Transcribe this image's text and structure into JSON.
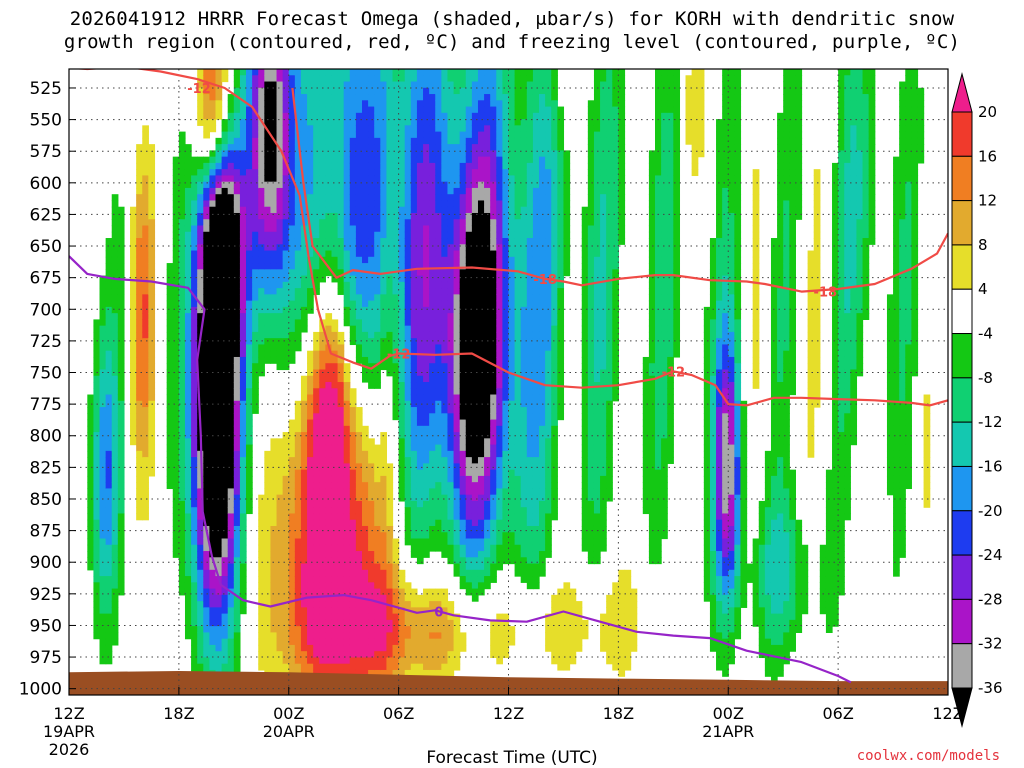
{
  "chart_data": {
    "type": "heatmap",
    "title_line1": "2026041912 HRRR Forecast Omega (shaded, μbar/s) for KORH with dendritic snow",
    "title_line2": "growth region (contoured, red, ºC) and freezing level (contoured, purple, ºC)",
    "xlabel": "Forecast Time (UTC)",
    "ylabel": "Pressure (hPa)",
    "credit": "coolwx.com/models",
    "x_range_hours": [
      0,
      48
    ],
    "y_range_hpa": [
      510,
      1005
    ],
    "y_ticks": [
      525,
      550,
      575,
      600,
      625,
      650,
      675,
      700,
      725,
      750,
      775,
      800,
      825,
      850,
      875,
      900,
      925,
      950,
      975,
      1000
    ],
    "x_ticks": [
      {
        "hour": 0,
        "label": "12Z",
        "sub": "19APR",
        "sub2": "2026"
      },
      {
        "hour": 6,
        "label": "18Z",
        "sub": "",
        "sub2": ""
      },
      {
        "hour": 12,
        "label": "00Z",
        "sub": "20APR",
        "sub2": ""
      },
      {
        "hour": 18,
        "label": "06Z",
        "sub": "",
        "sub2": ""
      },
      {
        "hour": 24,
        "label": "12Z",
        "sub": "",
        "sub2": ""
      },
      {
        "hour": 30,
        "label": "18Z",
        "sub": "",
        "sub2": ""
      },
      {
        "hour": 36,
        "label": "00Z",
        "sub": "21APR",
        "sub2": ""
      },
      {
        "hour": 42,
        "label": "06Z",
        "sub": "",
        "sub2": ""
      },
      {
        "hour": 48,
        "label": "12Z",
        "sub": "",
        "sub2": ""
      }
    ],
    "colorbar": {
      "labels": [
        "20",
        "16",
        "12",
        "8",
        "4",
        "-4",
        "-8",
        "-12",
        "-16",
        "-20",
        "-24",
        "-28",
        "-32",
        "-36"
      ],
      "bins": [
        {
          "lo": 20,
          "hi": 99,
          "color": "#ee1e8c"
        },
        {
          "lo": 16,
          "hi": 20,
          "color": "#f03a2c"
        },
        {
          "lo": 12,
          "hi": 16,
          "color": "#f07e22"
        },
        {
          "lo": 8,
          "hi": 12,
          "color": "#e2aa2e"
        },
        {
          "lo": 4,
          "hi": 8,
          "color": "#e6de2a"
        },
        {
          "lo": -4,
          "hi": 4,
          "color": "#ffffff"
        },
        {
          "lo": -8,
          "hi": -4,
          "color": "#14c814"
        },
        {
          "lo": -12,
          "hi": -8,
          "color": "#10d072"
        },
        {
          "lo": -16,
          "hi": -12,
          "color": "#14c8b0"
        },
        {
          "lo": -20,
          "hi": -16,
          "color": "#1e96f0"
        },
        {
          "lo": -24,
          "hi": -20,
          "color": "#1e3cf0"
        },
        {
          "lo": -28,
          "hi": -24,
          "color": "#7820dc"
        },
        {
          "lo": -32,
          "hi": -28,
          "color": "#aa14c8"
        },
        {
          "lo": -36,
          "hi": -32,
          "color": "#a8a8a8"
        },
        {
          "lo": -99,
          "hi": -36,
          "color": "#000000"
        }
      ]
    },
    "omega_features": [
      {
        "name": "descent-core-1",
        "hour": 8.0,
        "hpa": 785,
        "sh": 0.9,
        "sp": 115,
        "amp": -58
      },
      {
        "name": "descent-core-1-upper",
        "hour": 8.4,
        "hpa": 650,
        "sh": 0.8,
        "sp": 60,
        "amp": -32
      },
      {
        "name": "descent-core-upper-stripe",
        "hour": 11.0,
        "hpa": 560,
        "sh": 0.8,
        "sp": 90,
        "amp": -34
      },
      {
        "name": "descent-wide-upper",
        "hour": 15.0,
        "hpa": 600,
        "sh": 3.2,
        "sp": 160,
        "amp": -14
      },
      {
        "name": "descent-core-2",
        "hour": 22.2,
        "hpa": 730,
        "sh": 1.3,
        "sp": 90,
        "amp": -28
      },
      {
        "name": "descent-wide-mid",
        "hour": 22.0,
        "hpa": 700,
        "sh": 3.6,
        "sp": 200,
        "amp": -14
      },
      {
        "name": "descent-core-3",
        "hour": 36.0,
        "hpa": 830,
        "sh": 0.55,
        "sp": 75,
        "amp": -32
      },
      {
        "name": "descent-right-lobe",
        "hour": 39.0,
        "hpa": 910,
        "sh": 1.4,
        "sp": 45,
        "amp": -12
      },
      {
        "name": "descent-far-right",
        "hour": 43.5,
        "hpa": 620,
        "sh": 0.9,
        "sp": 110,
        "amp": -9
      },
      {
        "name": "descent-left-low",
        "hour": 2.0,
        "hpa": 830,
        "sh": 0.6,
        "sp": 80,
        "amp": -18
      },
      {
        "name": "ascent-core-1",
        "hour": 4.0,
        "hpa": 700,
        "sh": 0.5,
        "sp": 90,
        "amp": 16
      },
      {
        "name": "ascent-top-1",
        "hour": 7.8,
        "hpa": 540,
        "sh": 0.7,
        "sp": 50,
        "amp": 22
      },
      {
        "name": "ascent-plume",
        "hour": 14.5,
        "hpa": 870,
        "sh": 2.2,
        "sp": 95,
        "amp": 30
      },
      {
        "name": "ascent-plume-upper",
        "hour": 14.3,
        "hpa": 760,
        "sh": 1.0,
        "sp": 60,
        "amp": 14
      },
      {
        "name": "ascent-low-spread",
        "hour": 19.0,
        "hpa": 955,
        "sh": 4.0,
        "sp": 35,
        "amp": 16
      },
      {
        "name": "ascent-low-right",
        "hour": 28.5,
        "hpa": 950,
        "sh": 2.8,
        "sp": 30,
        "amp": 7
      },
      {
        "name": "ascent-top-right",
        "hour": 34.0,
        "hpa": 540,
        "sh": 0.5,
        "sp": 40,
        "amp": 7
      },
      {
        "name": "ascent-top-mid",
        "hour": 27.0,
        "hpa": 525,
        "sh": 0.5,
        "sp": 30,
        "amp": 6
      }
    ],
    "series": [
      {
        "name": "dendritic -12C upper",
        "label": "-12",
        "color": "#f04b46",
        "points": [
          [
            0,
            509
          ],
          [
            1,
            510
          ],
          [
            3,
            508
          ],
          [
            5,
            512
          ],
          [
            7,
            518
          ],
          [
            8.5,
            525
          ],
          [
            10,
            540
          ],
          [
            11.6,
            575
          ],
          [
            12.6,
            610
          ],
          [
            13.1,
            660
          ],
          [
            13.6,
            700
          ],
          [
            14.3,
            735
          ],
          [
            15.5,
            742
          ],
          [
            16.5,
            747
          ],
          [
            17.5,
            737
          ],
          [
            18,
            735
          ]
        ]
      },
      {
        "name": "dendritic -12C lower",
        "label": "-12",
        "color": "#f04b46",
        "points": [
          [
            18,
            735
          ],
          [
            20,
            736
          ],
          [
            22,
            735
          ],
          [
            24,
            750
          ],
          [
            26,
            760
          ],
          [
            28,
            762
          ],
          [
            30,
            760
          ],
          [
            32,
            755
          ],
          [
            33,
            749
          ],
          [
            34,
            752
          ],
          [
            35.3,
            760
          ],
          [
            36,
            775
          ],
          [
            37,
            776
          ],
          [
            38.5,
            770
          ],
          [
            40,
            770
          ],
          [
            42,
            771
          ],
          [
            44,
            772
          ],
          [
            46,
            774
          ],
          [
            47,
            776
          ],
          [
            48,
            772
          ]
        ]
      },
      {
        "name": "dendritic -18C",
        "label": "-18",
        "color": "#f04b46",
        "points": [
          [
            12.2,
            525
          ],
          [
            12.8,
            600
          ],
          [
            13.3,
            650
          ],
          [
            14.6,
            675
          ],
          [
            15.5,
            669
          ],
          [
            17,
            672
          ],
          [
            19,
            668
          ],
          [
            22,
            667
          ],
          [
            24.5,
            670
          ],
          [
            26,
            676
          ],
          [
            27,
            678
          ],
          [
            28,
            681
          ],
          [
            30,
            676
          ],
          [
            32,
            673
          ],
          [
            33,
            673
          ],
          [
            35,
            677
          ],
          [
            37,
            678
          ],
          [
            38,
            680
          ],
          [
            40,
            686
          ],
          [
            42,
            684
          ],
          [
            44,
            680
          ],
          [
            46,
            668
          ],
          [
            47.4,
            656
          ],
          [
            48,
            640
          ]
        ]
      },
      {
        "name": "freezing level 0C",
        "label": "0",
        "color": "#9624c8",
        "points": [
          [
            0,
            658
          ],
          [
            1,
            672
          ],
          [
            2.5,
            676
          ],
          [
            4.5,
            678
          ],
          [
            6.5,
            683
          ],
          [
            7.4,
            700
          ],
          [
            7.0,
            740
          ],
          [
            7.2,
            800
          ],
          [
            7.3,
            860
          ],
          [
            7.8,
            895
          ],
          [
            8.3,
            918
          ],
          [
            9.5,
            930
          ],
          [
            11,
            935
          ],
          [
            13,
            928
          ],
          [
            15,
            926
          ],
          [
            16.5,
            930
          ],
          [
            18,
            936
          ],
          [
            19,
            940
          ],
          [
            20,
            938
          ],
          [
            21,
            942
          ],
          [
            23,
            946
          ],
          [
            25,
            947
          ],
          [
            27,
            939
          ],
          [
            29,
            947
          ],
          [
            31,
            955
          ],
          [
            33,
            958
          ],
          [
            35,
            960
          ],
          [
            37,
            970
          ],
          [
            40,
            979
          ],
          [
            42,
            990
          ],
          [
            42.7,
            995
          ]
        ]
      }
    ]
  }
}
